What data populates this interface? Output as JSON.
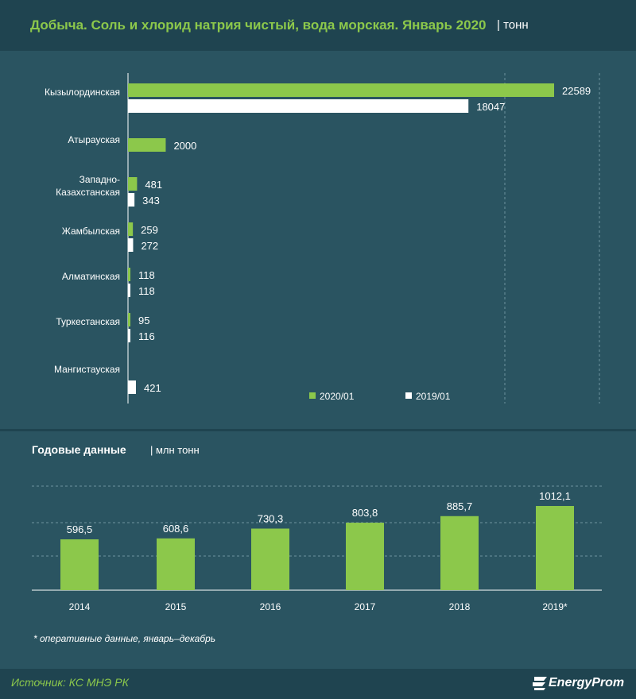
{
  "header": {
    "title": "Добыча. Соль и хлорид натрия чистый, вода морская. Январь 2020",
    "unit": "| тонн"
  },
  "annual": {
    "title": "Годовые данные",
    "unit": "| млн тонн"
  },
  "footnote": "* оперативные данные, январь–декабрь",
  "footer": {
    "source": "Источник: КС МНЭ РК",
    "logo": "EnergyProm"
  },
  "colors": {
    "background": "#2a5461",
    "panel": "#1f4450",
    "green": "#8cc84b",
    "white": "#ffffff"
  },
  "chart_data": [
    {
      "type": "bar",
      "orientation": "horizontal",
      "title": "Добыча. Соль и хлорид натрия чистый, вода морская. Январь 2020",
      "unit": "тонн",
      "categories": [
        "Кызылординская",
        "Атырауская",
        "Западно-\nКазахстанская",
        "Жамбылская",
        "Алматинская",
        "Туркестанская",
        "Мангистауская"
      ],
      "series": [
        {
          "name": "2020/01",
          "color": "#8cc84b",
          "values": [
            22589,
            2000,
            481,
            259,
            118,
            95,
            null
          ]
        },
        {
          "name": "2019/01",
          "color": "#ffffff",
          "values": [
            18047,
            null,
            343,
            272,
            118,
            116,
            421
          ]
        }
      ],
      "xlim": [
        0,
        25000
      ],
      "grid": true,
      "legend": "bottom-right"
    },
    {
      "type": "bar",
      "orientation": "vertical",
      "title": "Годовые данные",
      "unit": "млн тонн",
      "categories": [
        "2014",
        "2015",
        "2016",
        "2017",
        "2018",
        "2019*"
      ],
      "series": [
        {
          "color": "#8cc84b",
          "values": [
            596.5,
            608.6,
            730.3,
            803.8,
            885.7,
            1012.1
          ],
          "labels": [
            "596,5",
            "608,6",
            "730,3",
            "803,8",
            "885,7",
            "1012,1"
          ]
        }
      ],
      "ylim": [
        0,
        1200
      ],
      "grid": true
    }
  ]
}
